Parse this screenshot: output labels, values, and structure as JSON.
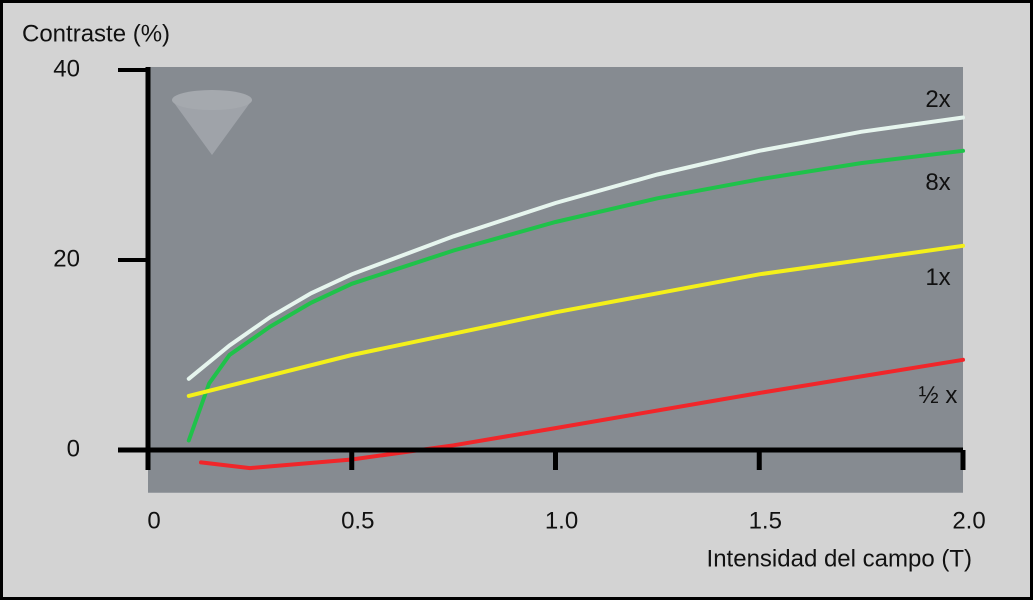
{
  "chart_data": {
    "type": "line",
    "y_label": "Contraste (%)",
    "x_label": "Intensidad del campo (T)",
    "xlim": [
      0,
      2.0
    ],
    "ylim": [
      -4.5,
      40
    ],
    "xticks": [
      0,
      0.5,
      {
        "value": 1.0,
        "label": "1.0"
      },
      1.5,
      {
        "value": 2.0,
        "label": "2.0"
      }
    ],
    "yticks": [
      0,
      20,
      40
    ],
    "series": [
      {
        "name": "2x",
        "color": "#e6f5ee",
        "x": [
          0.1,
          0.2,
          0.3,
          0.4,
          0.5,
          0.75,
          1.0,
          1.25,
          1.5,
          1.75,
          2.0
        ],
        "values": [
          7.5,
          11,
          14,
          16.5,
          18.5,
          22.5,
          26,
          29,
          31.5,
          33.5,
          35
        ]
      },
      {
        "name": "8x",
        "color": "#1fc24a",
        "x": [
          0.1,
          0.15,
          0.2,
          0.3,
          0.4,
          0.5,
          0.75,
          1.0,
          1.25,
          1.5,
          1.75,
          2.0
        ],
        "values": [
          1,
          7,
          10,
          13,
          15.5,
          17.5,
          21,
          24,
          26.5,
          28.5,
          30.2,
          31.5
        ]
      },
      {
        "name": "1x",
        "color": "#f4f01a",
        "x": [
          0.1,
          0.5,
          1.0,
          1.5,
          2.0
        ],
        "values": [
          5.7,
          10,
          14.5,
          18.5,
          21.5
        ]
      },
      {
        "name": "½ x",
        "color": "#f0262a",
        "x": [
          0.13,
          0.25,
          0.5,
          0.75,
          1.0,
          1.5,
          2.0
        ],
        "values": [
          -1.3,
          -1.9,
          -1,
          0.5,
          2.3,
          6,
          9.5
        ]
      }
    ]
  }
}
